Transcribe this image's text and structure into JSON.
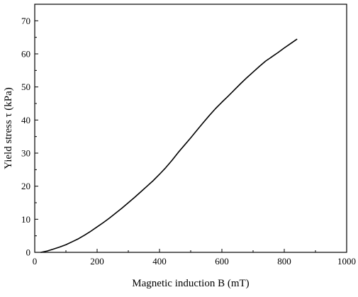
{
  "chart_data": {
    "type": "line",
    "xlabel": "Magnetic induction B (mT)",
    "ylabel": "Yield stress τ (kPa)",
    "xlim": [
      0,
      1000
    ],
    "ylim": [
      0,
      75
    ],
    "xticks": [
      0,
      200,
      400,
      600,
      800,
      1000
    ],
    "yticks": [
      0,
      10,
      20,
      30,
      40,
      50,
      60,
      70
    ],
    "grid": false,
    "series": [
      {
        "color": "#000000",
        "x": [
          20,
          40,
          60,
          80,
          100,
          120,
          140,
          160,
          180,
          200,
          220,
          240,
          260,
          280,
          300,
          320,
          340,
          360,
          380,
          400,
          420,
          440,
          460,
          480,
          500,
          520,
          540,
          560,
          580,
          600,
          620,
          640,
          660,
          680,
          700,
          720,
          740,
          760,
          780,
          800,
          820,
          840
        ],
        "y": [
          0.0,
          0.4,
          1.0,
          1.6,
          2.3,
          3.2,
          4.1,
          5.2,
          6.4,
          7.7,
          9.0,
          10.4,
          11.9,
          13.4,
          15.0,
          16.6,
          18.3,
          20.0,
          21.7,
          23.6,
          25.6,
          27.8,
          30.2,
          32.4,
          34.6,
          36.9,
          39.2,
          41.4,
          43.5,
          45.4,
          47.2,
          49.1,
          51.0,
          52.8,
          54.5,
          56.2,
          57.8,
          59.1,
          60.4,
          61.8,
          63.1,
          64.4
        ]
      }
    ]
  }
}
